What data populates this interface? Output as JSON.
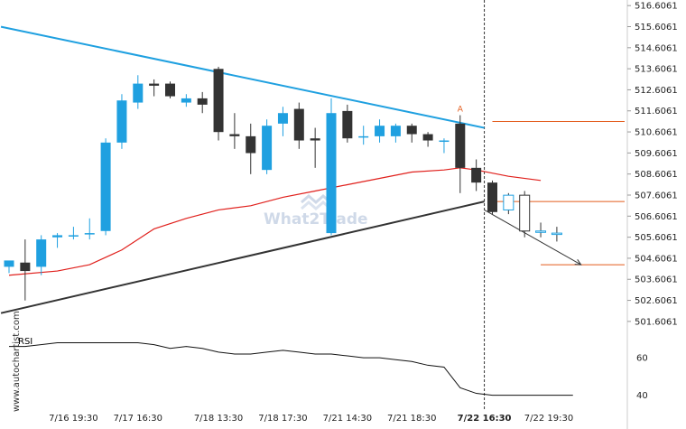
{
  "chart_data": {
    "type": "candlestick",
    "price_axis": {
      "ticks": [
        "516.6061",
        "515.6061",
        "514.6061",
        "513.6061",
        "512.6061",
        "511.6061",
        "510.6061",
        "509.6061",
        "508.6061",
        "507.6061",
        "506.6061",
        "505.6061",
        "504.6061",
        "503.6061",
        "502.6061",
        "501.6061"
      ],
      "ylim": [
        501.0,
        516.7
      ]
    },
    "time_axis": {
      "labels": [
        "7/16 19:30",
        "7/17 16:30",
        "7/18 13:30",
        "7/18 17:30",
        "7/21 14:30",
        "7/21 18:30",
        "7/22 16:30",
        "7/22 19:30"
      ],
      "highlighted": "7/22 16:30"
    },
    "candles": [
      {
        "o": 504.2,
        "h": 504.4,
        "l": 503.9,
        "c": 504.5
      },
      {
        "o": 504.4,
        "h": 505.5,
        "l": 502.6,
        "c": 504.0
      },
      {
        "o": 504.2,
        "h": 505.7,
        "l": 503.8,
        "c": 505.5
      },
      {
        "o": 505.6,
        "h": 505.8,
        "l": 505.1,
        "c": 505.7
      },
      {
        "o": 505.7,
        "h": 506.1,
        "l": 505.5,
        "c": 505.7
      },
      {
        "o": 505.8,
        "h": 506.5,
        "l": 505.5,
        "c": 505.8
      },
      {
        "o": 505.9,
        "h": 510.3,
        "l": 505.7,
        "c": 510.1
      },
      {
        "o": 510.1,
        "h": 512.4,
        "l": 509.8,
        "c": 512.1
      },
      {
        "o": 512.0,
        "h": 513.3,
        "l": 511.7,
        "c": 512.9
      },
      {
        "o": 512.9,
        "h": 513.1,
        "l": 512.3,
        "c": 512.8
      },
      {
        "o": 512.9,
        "h": 513.0,
        "l": 512.2,
        "c": 512.3
      },
      {
        "o": 512.0,
        "h": 512.4,
        "l": 511.8,
        "c": 512.2
      },
      {
        "o": 512.2,
        "h": 512.5,
        "l": 511.5,
        "c": 511.9
      },
      {
        "o": 513.6,
        "h": 513.7,
        "l": 510.2,
        "c": 510.6
      },
      {
        "o": 510.5,
        "h": 511.5,
        "l": 509.8,
        "c": 510.4
      },
      {
        "o": 510.4,
        "h": 511.0,
        "l": 508.6,
        "c": 509.6
      },
      {
        "o": 508.8,
        "h": 511.2,
        "l": 508.6,
        "c": 510.9
      },
      {
        "o": 511.0,
        "h": 511.8,
        "l": 510.4,
        "c": 511.5
      },
      {
        "o": 511.7,
        "h": 512.0,
        "l": 509.8,
        "c": 510.2
      },
      {
        "o": 510.3,
        "h": 510.8,
        "l": 508.9,
        "c": 510.2
      },
      {
        "o": 505.8,
        "h": 512.2,
        "l": 505.7,
        "c": 511.5
      },
      {
        "o": 511.6,
        "h": 511.9,
        "l": 510.1,
        "c": 510.3
      },
      {
        "o": 510.4,
        "h": 510.9,
        "l": 510.0,
        "c": 510.4
      },
      {
        "o": 510.4,
        "h": 511.2,
        "l": 510.1,
        "c": 510.9
      },
      {
        "o": 510.4,
        "h": 511.0,
        "l": 510.1,
        "c": 510.9
      },
      {
        "o": 510.9,
        "h": 511.0,
        "l": 510.1,
        "c": 510.5
      },
      {
        "o": 510.5,
        "h": 510.6,
        "l": 509.9,
        "c": 510.2
      },
      {
        "o": 510.2,
        "h": 510.3,
        "l": 509.6,
        "c": 510.2
      },
      {
        "o": 511.0,
        "h": 511.4,
        "l": 507.7,
        "c": 508.9
      },
      {
        "o": 508.9,
        "h": 509.3,
        "l": 507.8,
        "c": 508.2
      },
      {
        "o": 508.2,
        "h": 508.3,
        "l": 506.7,
        "c": 506.8
      },
      {
        "o": 506.9,
        "h": 507.7,
        "l": 506.7,
        "c": 507.6
      },
      {
        "o": 507.6,
        "h": 507.8,
        "l": 505.6,
        "c": 505.9
      },
      {
        "o": 505.9,
        "h": 506.3,
        "l": 505.6,
        "c": 505.9
      },
      {
        "o": 505.8,
        "h": 506.1,
        "l": 505.4,
        "c": 505.8
      }
    ],
    "ma_line": [
      [
        0,
        503.8
      ],
      [
        3,
        504.0
      ],
      [
        5,
        504.3
      ],
      [
        7,
        505.0
      ],
      [
        9,
        506.0
      ],
      [
        11,
        506.5
      ],
      [
        13,
        506.9
      ],
      [
        15,
        507.1
      ],
      [
        17,
        507.5
      ],
      [
        19,
        507.8
      ],
      [
        21,
        508.1
      ],
      [
        23,
        508.4
      ],
      [
        25,
        508.7
      ],
      [
        27,
        508.8
      ],
      [
        28,
        508.9
      ],
      [
        29,
        508.8
      ],
      [
        31,
        508.5
      ],
      [
        33,
        508.3
      ]
    ],
    "upper_trendline": [
      [
        -0.5,
        515.6
      ],
      [
        29.5,
        510.8
      ]
    ],
    "lower_trendline": [
      [
        -0.5,
        502.0
      ],
      [
        29.5,
        507.3
      ]
    ],
    "resistance_level": {
      "value": 511.1,
      "from": 30,
      "to": 35
    },
    "target_level": {
      "value": 504.3,
      "from": 33,
      "to": 35
    },
    "mid_level": {
      "value": 507.3,
      "from": 30,
      "to": 35
    },
    "projection": [
      [
        29.5,
        506.9
      ],
      [
        35.5,
        504.3
      ]
    ],
    "marker": {
      "index": 28,
      "label": "A"
    },
    "rsi": {
      "label": "RSI",
      "ticks": [
        "60",
        "40"
      ],
      "ylim": [
        35,
        75
      ],
      "values": [
        [
          0,
          66
        ],
        [
          1,
          66
        ],
        [
          3,
          68
        ],
        [
          5,
          68
        ],
        [
          7,
          68
        ],
        [
          8,
          68
        ],
        [
          9,
          67
        ],
        [
          10,
          65
        ],
        [
          11,
          66
        ],
        [
          12,
          65
        ],
        [
          13,
          63
        ],
        [
          14,
          62
        ],
        [
          15,
          62
        ],
        [
          16,
          63
        ],
        [
          17,
          64
        ],
        [
          18,
          63
        ],
        [
          19,
          62
        ],
        [
          20,
          62
        ],
        [
          21,
          61
        ],
        [
          22,
          60
        ],
        [
          23,
          60
        ],
        [
          24,
          59
        ],
        [
          25,
          58
        ],
        [
          26,
          56
        ],
        [
          27,
          55
        ],
        [
          28,
          44
        ],
        [
          29,
          41
        ],
        [
          30,
          40
        ],
        [
          31,
          40
        ],
        [
          32,
          40
        ],
        [
          33,
          40
        ],
        [
          34,
          40
        ],
        [
          35,
          40
        ]
      ]
    },
    "colors": {
      "bull": "#1fa0e0",
      "bear": "#333333",
      "ma": "#e0201c",
      "upper_trend": "#1fa0e0",
      "lower_trend": "#333333",
      "levels": "#e35b1c",
      "projection": "#333333"
    }
  },
  "watermark": "What2Trade",
  "side_text": "www.autochartist.com"
}
